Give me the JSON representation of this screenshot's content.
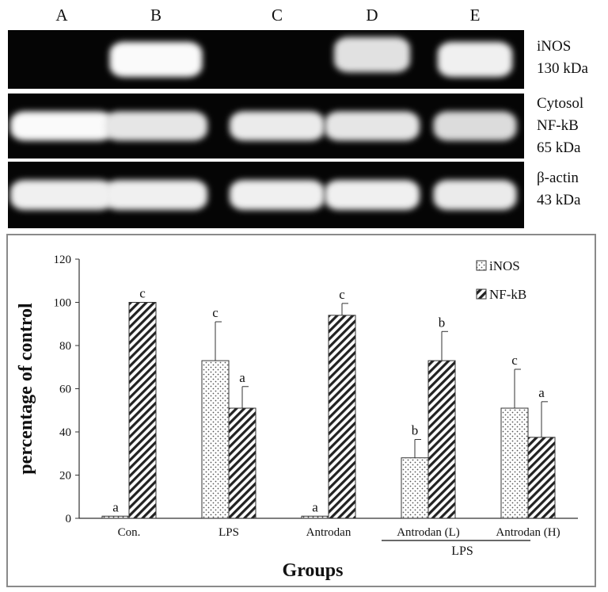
{
  "blot": {
    "lanes": [
      "A",
      "B",
      "C",
      "D",
      "E"
    ],
    "rows": [
      {
        "label_lines": [
          "iNOS",
          "130 kDa"
        ],
        "intensities": [
          0,
          1.0,
          0,
          0.75,
          0.9
        ]
      },
      {
        "label_lines": [
          "Cytosol",
          "NF-kB",
          "65 kDa"
        ],
        "intensities": [
          1.0,
          0.8,
          0.85,
          0.8,
          0.7
        ]
      },
      {
        "label_lines": [
          "β-actin",
          "43 kDa"
        ],
        "intensities": [
          0.9,
          0.9,
          0.9,
          0.9,
          0.85
        ]
      }
    ]
  },
  "chart_data": {
    "type": "bar",
    "categories": [
      "Con.",
      "LPS",
      "Antrodan",
      "Antrodan (L)",
      "Antrodan (H)"
    ],
    "group_label": "LPS",
    "series": [
      {
        "name": "iNOS",
        "values": [
          1,
          73,
          1,
          28,
          51
        ],
        "errors": [
          0,
          18,
          0,
          8.5,
          18
        ],
        "letters": [
          "a",
          "c",
          "a",
          "b",
          "c"
        ]
      },
      {
        "name": "NF-kB",
        "values": [
          100,
          51,
          94,
          73,
          37.5
        ],
        "errors": [
          0,
          10,
          5.5,
          13.5,
          16.5
        ],
        "letters": [
          "c",
          "a",
          "c",
          "b",
          "a"
        ]
      }
    ],
    "xlabel": "Groups",
    "ylabel": "percentage of control",
    "ylim": [
      0,
      120
    ],
    "yticks": [
      0,
      20,
      40,
      60,
      80,
      100,
      120
    ],
    "legend_position": "top-right"
  }
}
